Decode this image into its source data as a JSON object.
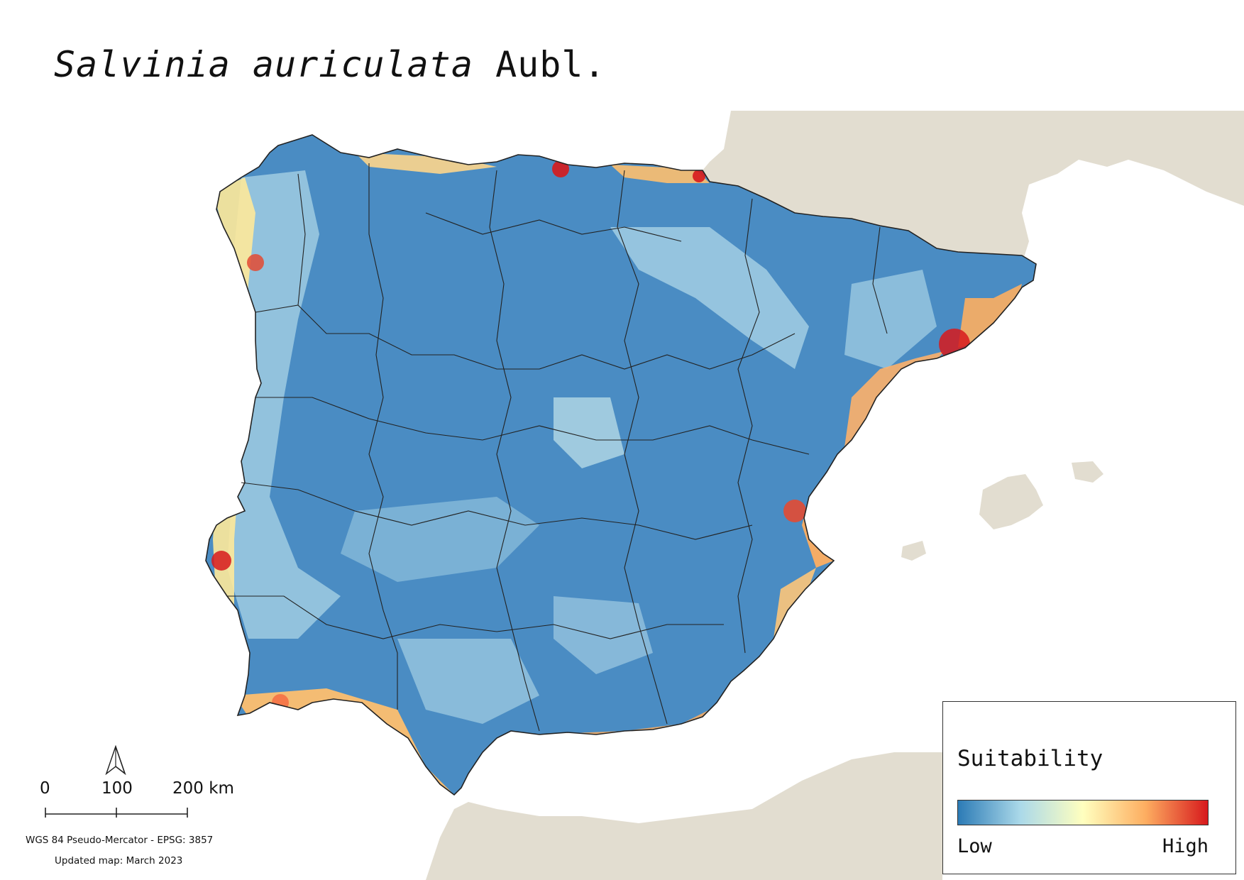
{
  "title": {
    "species": "Salvinia auriculata",
    "author": "Aubl."
  },
  "legend": {
    "title": "Suitability",
    "low_label": "Low",
    "high_label": "High",
    "gradient_colors": [
      "#2c7bb6",
      "#abd9e9",
      "#ffffbf",
      "#fdae61",
      "#d7191c"
    ]
  },
  "scale": {
    "labels": [
      "0",
      "100",
      "200 km"
    ]
  },
  "projection_text": "WGS 84 Pseudo-Mercator  - EPSG: 3857",
  "updated_text": "Updated map: March 2023",
  "colors": {
    "land_outside": "#e2ddd0",
    "sea": "#ffffff",
    "border": "#222222"
  },
  "icons": {
    "north": "north-arrow-icon"
  }
}
